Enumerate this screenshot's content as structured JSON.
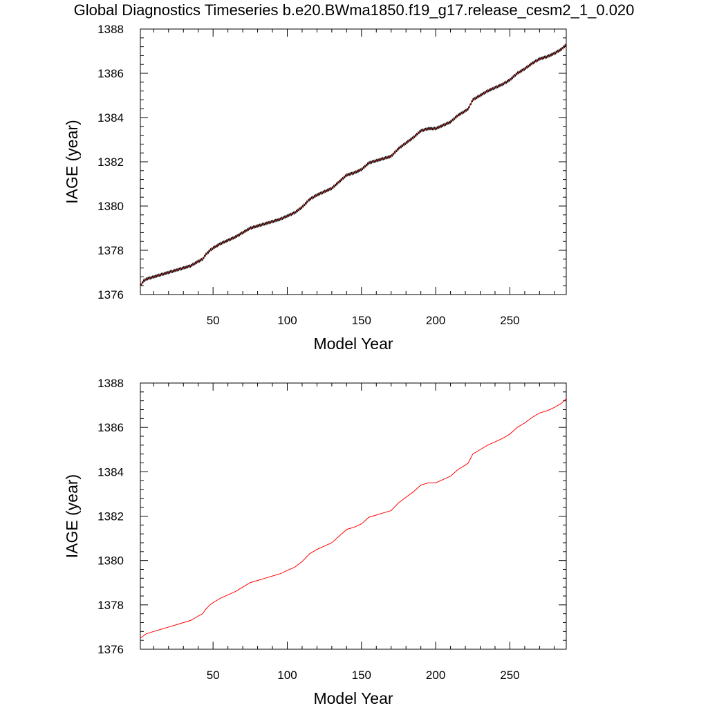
{
  "figure": {
    "title": "Global Diagnostics Timeseries b.e20.BWma1850.f19_g17.release_cesm2_1_0.020"
  },
  "chart_data": [
    {
      "type": "line",
      "title": "",
      "xlabel": "Model Year",
      "ylabel": "IAGE (year)",
      "xlim": [
        1,
        288
      ],
      "ylim": [
        1376,
        1388
      ],
      "x_ticks": [
        50,
        100,
        150,
        200,
        250
      ],
      "y_ticks": [
        1376,
        1378,
        1380,
        1382,
        1384,
        1386,
        1388
      ],
      "grid": false,
      "legend": "none",
      "series": [
        {
          "style": "monthly",
          "color": "#000000",
          "highlight_color": "#cc0000",
          "seasonal_amplitude": 0.06,
          "x": [
            1,
            3,
            5,
            10,
            15,
            20,
            25,
            30,
            35,
            40,
            43,
            45,
            48,
            50,
            55,
            60,
            65,
            70,
            75,
            80,
            85,
            90,
            95,
            100,
            105,
            110,
            115,
            120,
            125,
            130,
            135,
            140,
            145,
            150,
            155,
            160,
            165,
            170,
            175,
            180,
            185,
            190,
            195,
            200,
            205,
            210,
            215,
            220,
            222,
            225,
            230,
            235,
            240,
            245,
            250,
            255,
            260,
            265,
            270,
            275,
            280,
            285,
            288
          ],
          "y": [
            1376.4,
            1376.6,
            1376.7,
            1376.8,
            1376.9,
            1377.0,
            1377.1,
            1377.2,
            1377.3,
            1377.5,
            1377.6,
            1377.8,
            1378.0,
            1378.1,
            1378.3,
            1378.45,
            1378.6,
            1378.8,
            1379.0,
            1379.1,
            1379.2,
            1379.3,
            1379.4,
            1379.55,
            1379.7,
            1379.95,
            1380.3,
            1380.5,
            1380.65,
            1380.8,
            1381.1,
            1381.4,
            1381.5,
            1381.65,
            1381.95,
            1382.05,
            1382.15,
            1382.25,
            1382.6,
            1382.85,
            1383.1,
            1383.4,
            1383.5,
            1383.5,
            1383.65,
            1383.8,
            1384.1,
            1384.3,
            1384.4,
            1384.8,
            1385.0,
            1385.2,
            1385.35,
            1385.5,
            1385.7,
            1386.0,
            1386.2,
            1386.45,
            1386.65,
            1386.75,
            1386.9,
            1387.1,
            1387.3
          ]
        }
      ]
    },
    {
      "type": "line",
      "title": "",
      "xlabel": "Model Year",
      "ylabel": "IAGE (year)",
      "xlim": [
        1,
        288
      ],
      "ylim": [
        1376,
        1388
      ],
      "x_ticks": [
        50,
        100,
        150,
        200,
        250
      ],
      "y_ticks": [
        1376,
        1378,
        1380,
        1382,
        1384,
        1386,
        1388
      ],
      "grid": false,
      "legend": "none",
      "series": [
        {
          "style": "annual",
          "color": "#ff0000",
          "x": [
            1,
            3,
            5,
            10,
            15,
            20,
            25,
            30,
            35,
            40,
            43,
            45,
            48,
            50,
            55,
            60,
            65,
            70,
            75,
            80,
            85,
            90,
            95,
            100,
            105,
            110,
            115,
            120,
            125,
            130,
            135,
            140,
            145,
            150,
            155,
            160,
            165,
            170,
            175,
            180,
            185,
            190,
            195,
            200,
            205,
            210,
            215,
            220,
            222,
            225,
            230,
            235,
            240,
            245,
            250,
            255,
            260,
            265,
            270,
            275,
            280,
            285,
            288
          ],
          "y": [
            1376.5,
            1376.6,
            1376.7,
            1376.8,
            1376.9,
            1377.0,
            1377.1,
            1377.2,
            1377.3,
            1377.5,
            1377.6,
            1377.8,
            1378.0,
            1378.1,
            1378.3,
            1378.45,
            1378.6,
            1378.8,
            1379.0,
            1379.1,
            1379.2,
            1379.3,
            1379.4,
            1379.55,
            1379.7,
            1379.95,
            1380.3,
            1380.5,
            1380.65,
            1380.8,
            1381.1,
            1381.4,
            1381.5,
            1381.65,
            1381.95,
            1382.05,
            1382.15,
            1382.25,
            1382.6,
            1382.85,
            1383.1,
            1383.4,
            1383.5,
            1383.5,
            1383.65,
            1383.8,
            1384.1,
            1384.3,
            1384.4,
            1384.8,
            1385.0,
            1385.2,
            1385.35,
            1385.5,
            1385.7,
            1386.0,
            1386.2,
            1386.45,
            1386.65,
            1386.75,
            1386.9,
            1387.1,
            1387.3
          ]
        }
      ]
    }
  ]
}
